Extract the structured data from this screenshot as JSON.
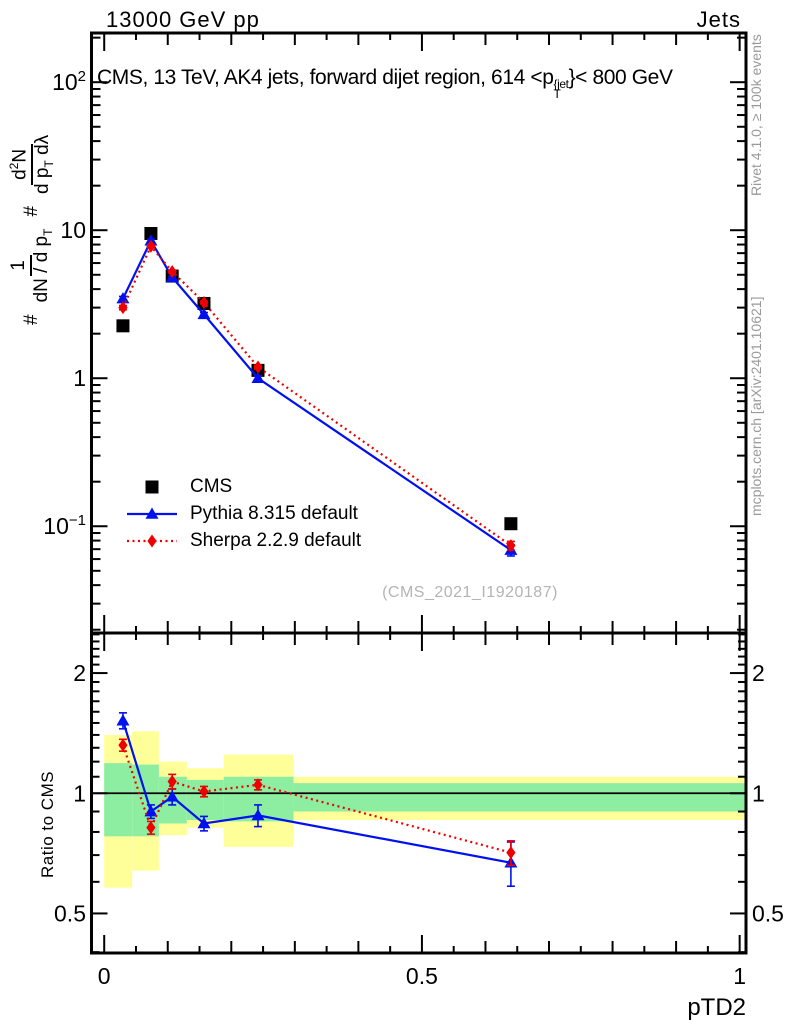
{
  "header": {
    "left": "13000 GeV pp",
    "right": "Jets"
  },
  "title": {
    "prefix": "CMS, 13 TeV, AK4 jets, forward dijet region, 614 <p",
    "sup": "{jet",
    "sub": "T",
    "suffix": "}< 800 GeV"
  },
  "ylabel": {
    "hash1": "#",
    "frac1_num": "1",
    "frac1_den": "dN / d p",
    "frac1_den_sub": "T",
    "hash2": "#",
    "frac2_num": "d",
    "frac2_num_sup": "2",
    "frac2_num_post": "N",
    "frac2_den": "d p",
    "frac2_den_sub": "T",
    "frac2_den_post": " dλ"
  },
  "side": {
    "rivet": "Rivet 4.1.0, ≥ 100k events",
    "mcplots": "mcplots.cern.ch [arXiv:2401.10621]"
  },
  "watermark": "(CMS_2021_I1920187)",
  "ratio_ylabel": "Ratio to CMS",
  "xlabel": "pTD2",
  "legend": [
    {
      "label": "CMS",
      "marker": "square",
      "color": "#000000",
      "line": "none"
    },
    {
      "label": "Pythia 8.315 default",
      "marker": "triangle",
      "color": "#0010ee",
      "line": "solid"
    },
    {
      "label": "Sherpa 2.2.9 default",
      "marker": "diamond",
      "color": "#ee0000",
      "line": "dotted"
    }
  ],
  "chart_data": {
    "type": "line",
    "title": "CMS, 13 TeV, AK4 jets, forward dijet region, 614 < pT{jet} < 800 GeV",
    "xlabel": "pTD2",
    "ylabel": "# 1/(dN/dpT) # d2N/(dpT dλ)",
    "ratio_ylabel": "Ratio to CMS",
    "x": [
      0.0295,
      0.0735,
      0.107,
      0.157,
      0.242,
      0.64
    ],
    "series": [
      {
        "name": "CMS",
        "marker": "square",
        "color": "#000000",
        "line": "none",
        "values": [
          2.26,
          9.5,
          4.9,
          3.2,
          1.13,
          0.104
        ]
      },
      {
        "name": "Pythia 8.315 default",
        "marker": "triangle",
        "color": "#0010ee",
        "line": "solid",
        "values": [
          3.45,
          8.5,
          4.8,
          2.7,
          1.0,
          0.069
        ],
        "errors": [
          0.12,
          0.2,
          0.12,
          0.08,
          0.04,
          0.006
        ]
      },
      {
        "name": "Sherpa 2.2.9 default",
        "marker": "diamond",
        "color": "#ee0000",
        "line": "dotted",
        "values": [
          3.0,
          7.8,
          5.25,
          3.25,
          1.19,
          0.074
        ],
        "errors": [
          0.1,
          0.18,
          0.12,
          0.07,
          0.035,
          0.005
        ]
      }
    ],
    "ratio": {
      "ylim": [
        0.398,
        2.52
      ],
      "series": [
        {
          "name": "Pythia 8.315 default",
          "marker": "triangle",
          "color": "#0010ee",
          "line": "solid",
          "values": [
            1.52,
            0.9,
            0.98,
            0.84,
            0.88,
            0.67
          ],
          "errors": [
            0.07,
            0.035,
            0.045,
            0.035,
            0.055,
            0.085
          ]
        },
        {
          "name": "Sherpa 2.2.9 default",
          "marker": "diamond",
          "color": "#ee0000",
          "line": "dotted",
          "values": [
            1.32,
            0.82,
            1.07,
            1.01,
            1.05,
            0.71
          ],
          "errors": [
            0.045,
            0.03,
            0.045,
            0.03,
            0.03,
            0.05
          ]
        }
      ],
      "bands": [
        {
          "x0": 0.0,
          "x1": 0.044,
          "yellow": [
            0.58,
            1.4
          ],
          "green": [
            0.78,
            1.19
          ]
        },
        {
          "x0": 0.044,
          "x1": 0.086,
          "yellow": [
            0.64,
            1.43
          ],
          "green": [
            0.78,
            1.18
          ]
        },
        {
          "x0": 0.086,
          "x1": 0.13,
          "yellow": [
            0.785,
            1.2
          ],
          "green": [
            0.84,
            1.1
          ]
        },
        {
          "x0": 0.13,
          "x1": 0.188,
          "yellow": [
            0.82,
            1.155
          ],
          "green": [
            0.857,
            1.08
          ]
        },
        {
          "x0": 0.188,
          "x1": 0.298,
          "yellow": [
            0.734,
            1.25
          ],
          "green": [
            0.85,
            1.1
          ]
        },
        {
          "x0": 0.298,
          "x1": 1.01,
          "yellow": [
            0.857,
            1.1
          ],
          "green": [
            0.9,
            1.06
          ]
        }
      ]
    },
    "xlim": [
      -0.02,
      1.01
    ],
    "main_ylim": [
      0.019,
      215
    ],
    "x_ticks": [
      {
        "v": 0,
        "label": "0"
      },
      {
        "v": 0.5,
        "label": "0.5"
      },
      {
        "v": 1,
        "label": "1"
      }
    ],
    "main_yticks": [
      {
        "v": 100,
        "base": "10",
        "sup": "2"
      },
      {
        "v": 10,
        "base": "10",
        "sup": ""
      },
      {
        "v": 1,
        "base": "1",
        "sup": ""
      },
      {
        "v": 0.1,
        "base": "10",
        "sup": "−1"
      }
    ],
    "ratio_yticks": [
      {
        "v": 2,
        "label": "2"
      },
      {
        "v": 1,
        "label": "1"
      },
      {
        "v": 0.5,
        "label": "0.5"
      }
    ],
    "band_colors": {
      "outer": "#ffff9a",
      "inner": "#8deea2"
    },
    "legend_position": "center-left",
    "grid": false
  }
}
